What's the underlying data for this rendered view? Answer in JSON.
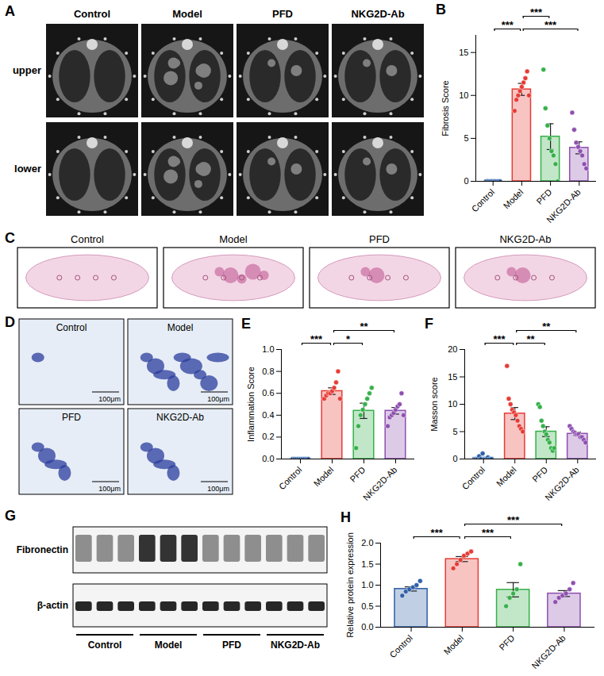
{
  "image_panels": {
    "A": {
      "columns": [
        "Control",
        "Model",
        "PFD",
        "NKG2D-Ab"
      ],
      "rows": [
        "upper",
        "lower"
      ]
    },
    "C": {
      "columns": [
        "Control",
        "Model",
        "PFD",
        "NKG2D-Ab"
      ]
    },
    "D": {
      "tiles": [
        "Control",
        "Model",
        "PFD",
        "NKG2D-Ab"
      ],
      "scale_bar": "100μm"
    },
    "G": {
      "rows": [
        "Fibronectin",
        "β-actin"
      ],
      "groups": [
        "Control",
        "Model",
        "PFD",
        "NKG2D-Ab"
      ]
    }
  },
  "chart_data": [
    {
      "panel": "B",
      "type": "bar",
      "y_label": "Fibrosis Score",
      "categories": [
        "Control",
        "Model",
        "PFD",
        "NKG2D-Ab"
      ],
      "values": [
        0,
        10.7,
        5.2,
        3.9
      ],
      "errors": [
        0,
        0.7,
        1.5,
        0.7
      ],
      "points": [
        [
          0,
          0,
          0,
          0,
          0,
          0,
          0,
          0
        ],
        [
          8.2,
          9.5,
          10,
          10.5,
          11,
          11.5,
          12,
          12.8,
          10
        ],
        [
          13,
          8.5,
          6.5,
          5,
          3.5,
          3,
          2,
          0
        ],
        [
          8,
          6,
          4.5,
          4,
          3.5,
          3,
          2,
          1.5
        ]
      ],
      "colors": [
        "#2f5fa7",
        "#e63b35",
        "#35b04a",
        "#8e4fb0"
      ],
      "ylim": [
        0,
        17
      ],
      "yticks": [
        0,
        5,
        10,
        15
      ],
      "grid": false,
      "comparisons": [
        {
          "from": "Control",
          "to": "Model",
          "label": "***"
        },
        {
          "from": "Model",
          "to": "NKG2D-Ab",
          "label": "***"
        },
        {
          "from": "Model",
          "to": "PFD",
          "label": "***"
        }
      ]
    },
    {
      "panel": "E",
      "type": "bar",
      "y_label": "Inflammation Score",
      "categories": [
        "Control",
        "Model",
        "PFD",
        "NKG2D-Ab"
      ],
      "values": [
        0,
        0.62,
        0.44,
        0.44
      ],
      "errors": [
        0,
        0.03,
        0.07,
        0.03
      ],
      "points": [
        [
          0,
          0,
          0,
          0,
          0,
          0,
          0,
          0,
          0
        ],
        [
          0.55,
          0.58,
          0.6,
          0.6,
          0.62,
          0.65,
          0.7,
          0.8,
          0.55
        ],
        [
          0.1,
          0.3,
          0.4,
          0.45,
          0.5,
          0.55,
          0.6,
          0.65
        ],
        [
          0.3,
          0.38,
          0.4,
          0.42,
          0.45,
          0.48,
          0.5,
          0.6,
          0.4
        ]
      ],
      "colors": [
        "#2f5fa7",
        "#e63b35",
        "#35b04a",
        "#8e4fb0"
      ],
      "ylim": [
        0,
        1
      ],
      "yticks": [
        {
          "value": 0,
          "label": "0.0"
        },
        0.2,
        0.4,
        0.6,
        0.8,
        {
          "value": 1,
          "label": "1.0"
        }
      ],
      "grid": false,
      "comparisons": [
        {
          "from": "Control",
          "to": "Model",
          "label": "***"
        },
        {
          "from": "Model",
          "to": "PFD",
          "label": "*"
        },
        {
          "from": "Model",
          "to": "NKG2D-Ab",
          "label": "**"
        }
      ]
    },
    {
      "panel": "F",
      "type": "bar",
      "y_label": "Masson score",
      "categories": [
        "Control",
        "Model",
        "PFD",
        "NKG2D-Ab"
      ],
      "values": [
        0.2,
        8.3,
        5,
        4.6
      ],
      "errors": [
        0.1,
        1.1,
        0.9,
        0.3
      ],
      "points": [
        [
          0,
          0,
          0.5,
          0,
          1,
          0,
          0,
          0.3,
          0,
          0
        ],
        [
          17,
          11,
          10,
          9,
          8.5,
          8,
          7,
          6,
          5.5,
          5
        ],
        [
          10,
          9.5,
          7,
          6,
          5,
          4.5,
          3.5,
          3,
          2,
          1.5,
          2
        ],
        [
          6,
          5.5,
          5,
          4.8,
          4.5,
          4.5,
          4,
          4,
          3.5,
          3
        ]
      ],
      "colors": [
        "#2f5fa7",
        "#e63b35",
        "#35b04a",
        "#8e4fb0"
      ],
      "ylim": [
        0,
        20
      ],
      "yticks": [
        0,
        5,
        10,
        15,
        20
      ],
      "grid": false,
      "comparisons": [
        {
          "from": "Control",
          "to": "Model",
          "label": "***"
        },
        {
          "from": "Model",
          "to": "PFD",
          "label": "**"
        },
        {
          "from": "Model",
          "to": "NKG2D-Ab",
          "label": "**"
        }
      ]
    },
    {
      "panel": "H",
      "type": "bar",
      "y_label": "Relative protein expression",
      "categories": [
        "Control",
        "Model",
        "PFD",
        "NKG2D-Ab"
      ],
      "values": [
        0.91,
        1.62,
        0.89,
        0.8
      ],
      "errors": [
        0.05,
        0.06,
        0.17,
        0.07
      ],
      "points": [
        [
          0.75,
          0.85,
          0.9,
          0.95,
          1.0,
          1.1
        ],
        [
          1.4,
          1.5,
          1.6,
          1.7,
          1.75,
          1.8
        ],
        [
          0.5,
          0.7,
          0.8,
          0.9,
          1.5
        ],
        [
          0.6,
          0.7,
          0.75,
          0.8,
          0.9,
          1.05
        ]
      ],
      "colors": [
        "#2f5fa7",
        "#e63b35",
        "#35b04a",
        "#8e4fb0"
      ],
      "ylim": [
        0,
        2
      ],
      "yticks": [
        {
          "value": 0,
          "label": "0.0"
        },
        0.5,
        {
          "value": 1,
          "label": "1.0"
        },
        1.5,
        {
          "value": 2,
          "label": "2.0"
        }
      ],
      "grid": false,
      "comparisons": [
        {
          "from": "Control",
          "to": "Model",
          "label": "***"
        },
        {
          "from": "Model",
          "to": "PFD",
          "label": "***"
        },
        {
          "from": "Model",
          "to": "NKG2D-Ab",
          "label": "***"
        }
      ]
    }
  ]
}
